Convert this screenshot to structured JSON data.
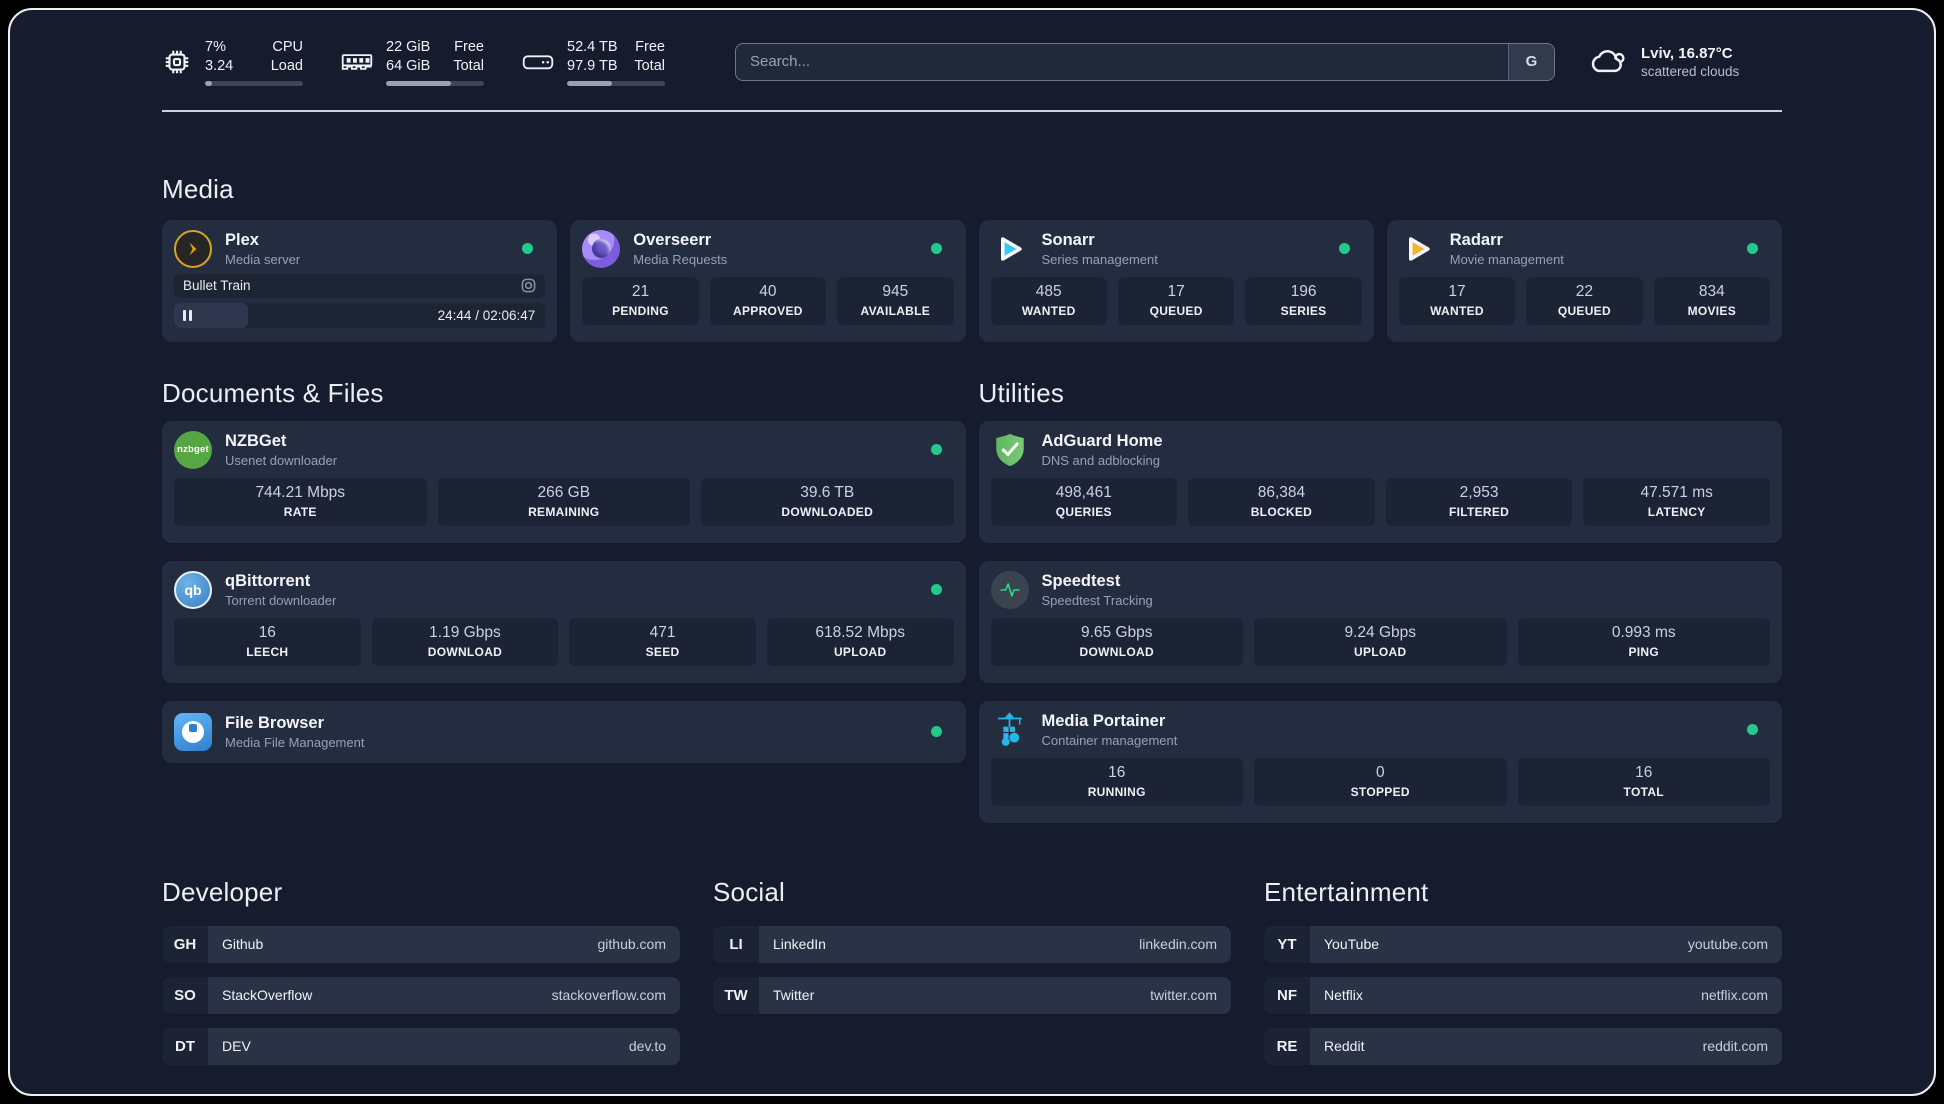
{
  "header": {
    "stats": [
      {
        "icon": "cpu-icon",
        "values": [
          "7%",
          "3.24"
        ],
        "labels": [
          "CPU",
          "Load"
        ],
        "progress_percent": 7
      },
      {
        "icon": "memory-icon",
        "values": [
          "22 GiB",
          "64 GiB"
        ],
        "labels": [
          "Free",
          "Total"
        ],
        "progress_percent": 66
      },
      {
        "icon": "disk-icon",
        "values": [
          "52.4 TB",
          "97.9 TB"
        ],
        "labels": [
          "Free",
          "Total"
        ],
        "progress_percent": 46
      }
    ],
    "search": {
      "placeholder": "Search...",
      "engine": "G"
    },
    "weather": {
      "location": "Lviv, 16.87°C",
      "condition": "scattered clouds"
    }
  },
  "sections": {
    "media": {
      "title": "Media",
      "plex": {
        "name": "Plex",
        "description": "Media server",
        "status": "online",
        "now_playing": {
          "title": "Bullet Train",
          "time": "24:44 / 02:06:47",
          "progress_percent": 20,
          "state": "paused"
        }
      },
      "overseerr": {
        "name": "Overseerr",
        "description": "Media Requests",
        "status": "online",
        "stats": [
          {
            "value": "21",
            "label": "PENDING"
          },
          {
            "value": "40",
            "label": "APPROVED"
          },
          {
            "value": "945",
            "label": "AVAILABLE"
          }
        ]
      },
      "sonarr": {
        "name": "Sonarr",
        "description": "Series management",
        "status": "online",
        "stats": [
          {
            "value": "485",
            "label": "WANTED"
          },
          {
            "value": "17",
            "label": "QUEUED"
          },
          {
            "value": "196",
            "label": "SERIES"
          }
        ]
      },
      "radarr": {
        "name": "Radarr",
        "description": "Movie management",
        "status": "online",
        "stats": [
          {
            "value": "17",
            "label": "WANTED"
          },
          {
            "value": "22",
            "label": "QUEUED"
          },
          {
            "value": "834",
            "label": "MOVIES"
          }
        ]
      }
    },
    "documents": {
      "title": "Documents & Files",
      "nzbget": {
        "name": "NZBGet",
        "description": "Usenet downloader",
        "status": "online",
        "stats": [
          {
            "value": "744.21 Mbps",
            "label": "RATE"
          },
          {
            "value": "266 GB",
            "label": "REMAINING"
          },
          {
            "value": "39.6 TB",
            "label": "DOWNLOADED"
          }
        ]
      },
      "qbittorrent": {
        "name": "qBittorrent",
        "description": "Torrent downloader",
        "status": "online",
        "stats": [
          {
            "value": "16",
            "label": "LEECH"
          },
          {
            "value": "1.19 Gbps",
            "label": "DOWNLOAD"
          },
          {
            "value": "471",
            "label": "SEED"
          },
          {
            "value": "618.52 Mbps",
            "label": "UPLOAD"
          }
        ]
      },
      "filebrowser": {
        "name": "File Browser",
        "description": "Media File Management",
        "status": "online"
      }
    },
    "utilities": {
      "title": "Utilities",
      "adguard": {
        "name": "AdGuard Home",
        "description": "DNS and adblocking",
        "stats": [
          {
            "value": "498,461",
            "label": "QUERIES"
          },
          {
            "value": "86,384",
            "label": "BLOCKED"
          },
          {
            "value": "2,953",
            "label": "FILTERED"
          },
          {
            "value": "47.571 ms",
            "label": "LATENCY"
          }
        ]
      },
      "speedtest": {
        "name": "Speedtest",
        "description": "Speedtest Tracking",
        "stats": [
          {
            "value": "9.65 Gbps",
            "label": "DOWNLOAD"
          },
          {
            "value": "9.24 Gbps",
            "label": "UPLOAD"
          },
          {
            "value": "0.993 ms",
            "label": "PING"
          }
        ]
      },
      "portainer": {
        "name": "Media Portainer",
        "description": "Container management",
        "status": "online",
        "stats": [
          {
            "value": "16",
            "label": "RUNNING"
          },
          {
            "value": "0",
            "label": "STOPPED"
          },
          {
            "value": "16",
            "label": "TOTAL"
          }
        ]
      }
    },
    "developer": {
      "title": "Developer",
      "links": [
        {
          "abbr": "GH",
          "name": "Github",
          "url": "github.com"
        },
        {
          "abbr": "SO",
          "name": "StackOverflow",
          "url": "stackoverflow.com"
        },
        {
          "abbr": "DT",
          "name": "DEV",
          "url": "dev.to"
        }
      ]
    },
    "social": {
      "title": "Social",
      "links": [
        {
          "abbr": "LI",
          "name": "LinkedIn",
          "url": "linkedin.com"
        },
        {
          "abbr": "TW",
          "name": "Twitter",
          "url": "twitter.com"
        }
      ]
    },
    "entertainment": {
      "title": "Entertainment",
      "links": [
        {
          "abbr": "YT",
          "name": "YouTube",
          "url": "youtube.com"
        },
        {
          "abbr": "NF",
          "name": "Netflix",
          "url": "netflix.com"
        },
        {
          "abbr": "RE",
          "name": "Reddit",
          "url": "reddit.com"
        }
      ]
    }
  },
  "colors": {
    "status_online": "#23c98c",
    "plex_amber": "#e8a00d",
    "sonarr_blue": "#38c8f5",
    "radarr_yellow": "#f7b32b",
    "overseerr_purple": "#8b5cf6",
    "nzbget_green": "#56a644",
    "qbittorrent_blue": "#4a8fd0",
    "filebrowser_blue": "#4aa3e8",
    "adguard_green": "#67bd5f",
    "speedtest_green": "#2fd683",
    "portainer_blue": "#29b5e8"
  }
}
